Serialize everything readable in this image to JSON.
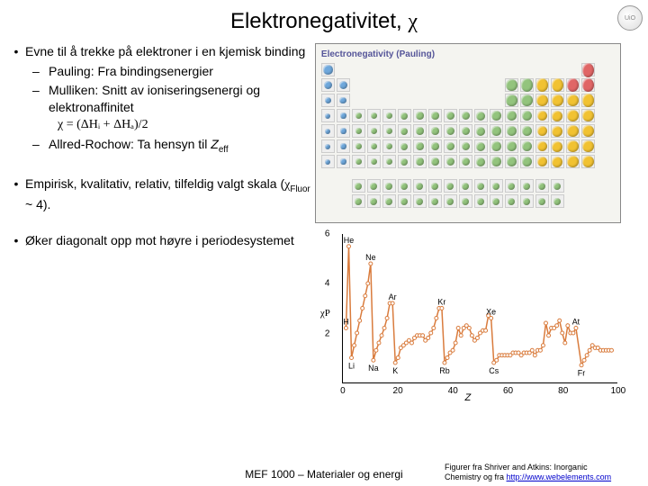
{
  "title_prefix": "Elektronegativitet, ",
  "title_symbol": "χ",
  "bullets": [
    {
      "text": "Evne til å trekke på elektroner i en kjemisk binding",
      "subs": [
        {
          "text": "Pauling: Fra bindingsenergier"
        },
        {
          "text": "Mulliken: Snitt av ioniseringsenergi og elektronaffinitet",
          "formula": "χ = (ΔHᵢ + ΔHₐ)/2"
        },
        {
          "text_html": "Allred-Rochow: Ta hensyn til <span class='italic'>Z</span><span class='sub'>eff</span>"
        }
      ]
    },
    {
      "text_html": "Empirisk, kvalitativ, relativ, tilfeldig valgt skala (<span class='greek'>χ</span><span class='sub'>Fluor</span> ~ 4).",
      "gap": true
    },
    {
      "text": "Øker diagonalt opp mot høyre i periodesystemet",
      "gap": true
    }
  ],
  "ptable": {
    "title": "Electronegativity (Pauling)",
    "cell_size": 15,
    "gap": 2,
    "main_rows": 7,
    "main_cols": 18,
    "f_rows": 2,
    "skip": [
      [
        0,
        1
      ],
      [
        0,
        2
      ],
      [
        0,
        3
      ],
      [
        0,
        4
      ],
      [
        0,
        5
      ],
      [
        0,
        6
      ],
      [
        0,
        7
      ],
      [
        0,
        8
      ],
      [
        0,
        9
      ],
      [
        0,
        10
      ],
      [
        0,
        11
      ],
      [
        0,
        12
      ],
      [
        0,
        13
      ],
      [
        0,
        14
      ],
      [
        0,
        15
      ],
      [
        0,
        16
      ],
      [
        1,
        2
      ],
      [
        1,
        3
      ],
      [
        1,
        4
      ],
      [
        1,
        5
      ],
      [
        1,
        6
      ],
      [
        1,
        7
      ],
      [
        1,
        8
      ],
      [
        1,
        9
      ],
      [
        1,
        10
      ],
      [
        1,
        11
      ],
      [
        2,
        2
      ],
      [
        2,
        3
      ],
      [
        2,
        4
      ],
      [
        2,
        5
      ],
      [
        2,
        6
      ],
      [
        2,
        7
      ],
      [
        2,
        8
      ],
      [
        2,
        9
      ],
      [
        2,
        10
      ],
      [
        2,
        11
      ]
    ],
    "colors": {
      "low": "#6fa8dc",
      "mid": "#93c47d",
      "high": "#f1c232",
      "vhigh": "#e06666",
      "none": "#cccccc"
    }
  },
  "chart": {
    "ylabel": "χP",
    "xlabel": "Z",
    "yticks": [
      2,
      4,
      6
    ],
    "xticks": [
      0,
      20,
      40,
      60,
      80,
      100
    ],
    "ylim": [
      0,
      6
    ],
    "xlim": [
      0,
      100
    ],
    "line_color": "#d97b3c",
    "marker_color": "#ffffff",
    "marker_stroke": "#d97b3c",
    "labels": [
      {
        "el": "He",
        "z": 2,
        "y": 5.5
      },
      {
        "el": "Ne",
        "z": 10,
        "y": 4.8
      },
      {
        "el": "Ar",
        "z": 18,
        "y": 3.2
      },
      {
        "el": "Kr",
        "z": 36,
        "y": 3.0
      },
      {
        "el": "Xe",
        "z": 54,
        "y": 2.6
      },
      {
        "el": "At",
        "z": 85,
        "y": 2.2
      },
      {
        "el": "H",
        "z": 1,
        "y": 2.2
      },
      {
        "el": "Li",
        "z": 3,
        "y": 1.0
      },
      {
        "el": "Na",
        "z": 11,
        "y": 0.9
      },
      {
        "el": "K",
        "z": 19,
        "y": 0.8
      },
      {
        "el": "Rb",
        "z": 37,
        "y": 0.8
      },
      {
        "el": "Cs",
        "z": 55,
        "y": 0.8
      },
      {
        "el": "Fr",
        "z": 87,
        "y": 0.7
      }
    ],
    "points": [
      [
        1,
        2.2
      ],
      [
        2,
        5.5
      ],
      [
        3,
        1.0
      ],
      [
        4,
        1.5
      ],
      [
        5,
        2.0
      ],
      [
        6,
        2.5
      ],
      [
        7,
        3.0
      ],
      [
        8,
        3.5
      ],
      [
        9,
        4.0
      ],
      [
        10,
        4.8
      ],
      [
        11,
        0.9
      ],
      [
        12,
        1.3
      ],
      [
        13,
        1.6
      ],
      [
        14,
        1.9
      ],
      [
        15,
        2.2
      ],
      [
        16,
        2.6
      ],
      [
        17,
        3.2
      ],
      [
        18,
        3.2
      ],
      [
        19,
        0.8
      ],
      [
        20,
        1.0
      ],
      [
        21,
        1.4
      ],
      [
        22,
        1.5
      ],
      [
        23,
        1.6
      ],
      [
        24,
        1.7
      ],
      [
        25,
        1.6
      ],
      [
        26,
        1.8
      ],
      [
        27,
        1.9
      ],
      [
        28,
        1.9
      ],
      [
        29,
        1.9
      ],
      [
        30,
        1.7
      ],
      [
        31,
        1.8
      ],
      [
        32,
        2.0
      ],
      [
        33,
        2.2
      ],
      [
        34,
        2.6
      ],
      [
        35,
        3.0
      ],
      [
        36,
        3.0
      ],
      [
        37,
        0.8
      ],
      [
        38,
        1.0
      ],
      [
        39,
        1.2
      ],
      [
        40,
        1.3
      ],
      [
        41,
        1.6
      ],
      [
        42,
        2.2
      ],
      [
        43,
        1.9
      ],
      [
        44,
        2.2
      ],
      [
        45,
        2.3
      ],
      [
        46,
        2.2
      ],
      [
        47,
        1.9
      ],
      [
        48,
        1.7
      ],
      [
        49,
        1.8
      ],
      [
        50,
        2.0
      ],
      [
        51,
        2.1
      ],
      [
        52,
        2.1
      ],
      [
        53,
        2.7
      ],
      [
        54,
        2.6
      ],
      [
        55,
        0.8
      ],
      [
        56,
        0.9
      ],
      [
        57,
        1.1
      ],
      [
        58,
        1.1
      ],
      [
        59,
        1.1
      ],
      [
        60,
        1.1
      ],
      [
        61,
        1.1
      ],
      [
        62,
        1.2
      ],
      [
        63,
        1.2
      ],
      [
        64,
        1.2
      ],
      [
        65,
        1.1
      ],
      [
        66,
        1.2
      ],
      [
        67,
        1.2
      ],
      [
        68,
        1.2
      ],
      [
        69,
        1.3
      ],
      [
        70,
        1.1
      ],
      [
        71,
        1.3
      ],
      [
        72,
        1.3
      ],
      [
        73,
        1.5
      ],
      [
        74,
        2.4
      ],
      [
        75,
        1.9
      ],
      [
        76,
        2.2
      ],
      [
        77,
        2.2
      ],
      [
        78,
        2.3
      ],
      [
        79,
        2.5
      ],
      [
        80,
        2.0
      ],
      [
        81,
        1.6
      ],
      [
        82,
        2.3
      ],
      [
        83,
        2.0
      ],
      [
        84,
        2.0
      ],
      [
        85,
        2.2
      ],
      [
        87,
        0.7
      ],
      [
        88,
        0.9
      ],
      [
        89,
        1.1
      ],
      [
        90,
        1.3
      ],
      [
        91,
        1.5
      ],
      [
        92,
        1.4
      ],
      [
        93,
        1.4
      ],
      [
        94,
        1.3
      ],
      [
        95,
        1.3
      ],
      [
        96,
        1.3
      ],
      [
        97,
        1.3
      ],
      [
        98,
        1.3
      ]
    ]
  },
  "footer_center": "MEF 1000 – Materialer og energi",
  "credit_line1": "Figurer fra Shriver and Atkins: Inorganic",
  "credit_line2": "Chemistry og fra ",
  "credit_url": "http://www.webelements.com"
}
